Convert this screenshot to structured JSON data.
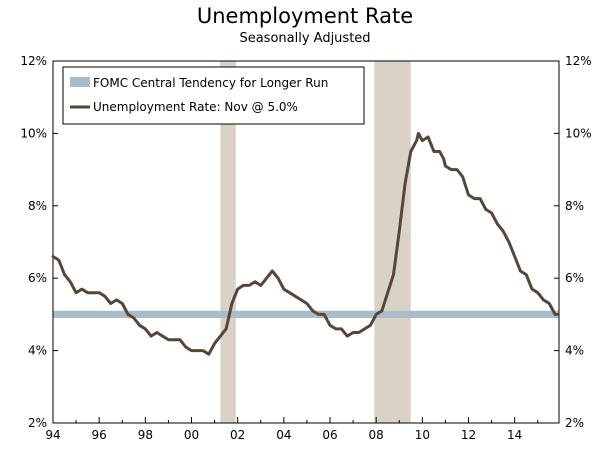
{
  "chart_data": {
    "type": "line",
    "title": "Unemployment Rate",
    "subtitle": "Seasonally Adjusted",
    "x_range": [
      1994.0,
      2015.92
    ],
    "ylim": [
      2,
      12
    ],
    "y_ticks": [
      2,
      4,
      6,
      8,
      10,
      12
    ],
    "y_tick_labels": [
      "2%",
      "4%",
      "6%",
      "8%",
      "10%",
      "12%"
    ],
    "x_ticks": [
      1994,
      1996,
      1998,
      2000,
      2002,
      2004,
      2006,
      2008,
      2010,
      2012,
      2014
    ],
    "x_tick_labels": [
      "94",
      "96",
      "98",
      "00",
      "02",
      "04",
      "06",
      "08",
      "10",
      "12",
      "14"
    ],
    "grid": false,
    "legend_position": "top-left",
    "recessions": [
      {
        "start": 2001.25,
        "end": 2001.92
      },
      {
        "start": 2007.92,
        "end": 2009.5
      }
    ],
    "band": {
      "name": "FOMC Central Tendency for Longer Run",
      "low": 4.9,
      "high": 5.1,
      "color": "#a9bcc8"
    },
    "series": [
      {
        "name": "Unemployment Rate: Nov @ 5.0%",
        "color": "#54473a",
        "points": [
          [
            1994.0,
            6.6
          ],
          [
            1994.25,
            6.5
          ],
          [
            1994.5,
            6.1
          ],
          [
            1994.75,
            5.9
          ],
          [
            1995.0,
            5.6
          ],
          [
            1995.25,
            5.7
          ],
          [
            1995.5,
            5.6
          ],
          [
            1995.75,
            5.6
          ],
          [
            1996.0,
            5.6
          ],
          [
            1996.25,
            5.5
          ],
          [
            1996.5,
            5.3
          ],
          [
            1996.75,
            5.4
          ],
          [
            1997.0,
            5.3
          ],
          [
            1997.25,
            5.0
          ],
          [
            1997.5,
            4.9
          ],
          [
            1997.75,
            4.7
          ],
          [
            1998.0,
            4.6
          ],
          [
            1998.25,
            4.4
          ],
          [
            1998.5,
            4.5
          ],
          [
            1998.75,
            4.4
          ],
          [
            1999.0,
            4.3
          ],
          [
            1999.25,
            4.3
          ],
          [
            1999.5,
            4.3
          ],
          [
            1999.75,
            4.1
          ],
          [
            2000.0,
            4.0
          ],
          [
            2000.25,
            4.0
          ],
          [
            2000.5,
            4.0
          ],
          [
            2000.75,
            3.9
          ],
          [
            2001.0,
            4.2
          ],
          [
            2001.25,
            4.4
          ],
          [
            2001.5,
            4.6
          ],
          [
            2001.75,
            5.3
          ],
          [
            2002.0,
            5.7
          ],
          [
            2002.25,
            5.8
          ],
          [
            2002.5,
            5.8
          ],
          [
            2002.75,
            5.9
          ],
          [
            2003.0,
            5.8
          ],
          [
            2003.25,
            6.0
          ],
          [
            2003.5,
            6.2
          ],
          [
            2003.75,
            6.0
          ],
          [
            2004.0,
            5.7
          ],
          [
            2004.25,
            5.6
          ],
          [
            2004.5,
            5.5
          ],
          [
            2004.75,
            5.4
          ],
          [
            2005.0,
            5.3
          ],
          [
            2005.25,
            5.1
          ],
          [
            2005.5,
            5.0
          ],
          [
            2005.75,
            5.0
          ],
          [
            2006.0,
            4.7
          ],
          [
            2006.25,
            4.6
          ],
          [
            2006.5,
            4.6
          ],
          [
            2006.75,
            4.4
          ],
          [
            2007.0,
            4.5
          ],
          [
            2007.25,
            4.5
          ],
          [
            2007.5,
            4.6
          ],
          [
            2007.75,
            4.7
          ],
          [
            2008.0,
            5.0
          ],
          [
            2008.25,
            5.1
          ],
          [
            2008.5,
            5.6
          ],
          [
            2008.75,
            6.1
          ],
          [
            2009.0,
            7.3
          ],
          [
            2009.25,
            8.6
          ],
          [
            2009.5,
            9.5
          ],
          [
            2009.75,
            9.8
          ],
          [
            2009.83,
            10.0
          ],
          [
            2010.0,
            9.8
          ],
          [
            2010.25,
            9.9
          ],
          [
            2010.5,
            9.5
          ],
          [
            2010.75,
            9.5
          ],
          [
            2010.92,
            9.3
          ],
          [
            2011.0,
            9.1
          ],
          [
            2011.25,
            9.0
          ],
          [
            2011.5,
            9.0
          ],
          [
            2011.75,
            8.8
          ],
          [
            2012.0,
            8.3
          ],
          [
            2012.25,
            8.2
          ],
          [
            2012.5,
            8.2
          ],
          [
            2012.75,
            7.9
          ],
          [
            2013.0,
            7.8
          ],
          [
            2013.25,
            7.5
          ],
          [
            2013.5,
            7.3
          ],
          [
            2013.75,
            7.0
          ],
          [
            2014.0,
            6.6
          ],
          [
            2014.25,
            6.2
          ],
          [
            2014.5,
            6.1
          ],
          [
            2014.75,
            5.7
          ],
          [
            2015.0,
            5.6
          ],
          [
            2015.25,
            5.4
          ],
          [
            2015.5,
            5.3
          ],
          [
            2015.75,
            5.0
          ],
          [
            2015.83,
            5.0
          ]
        ]
      }
    ]
  }
}
